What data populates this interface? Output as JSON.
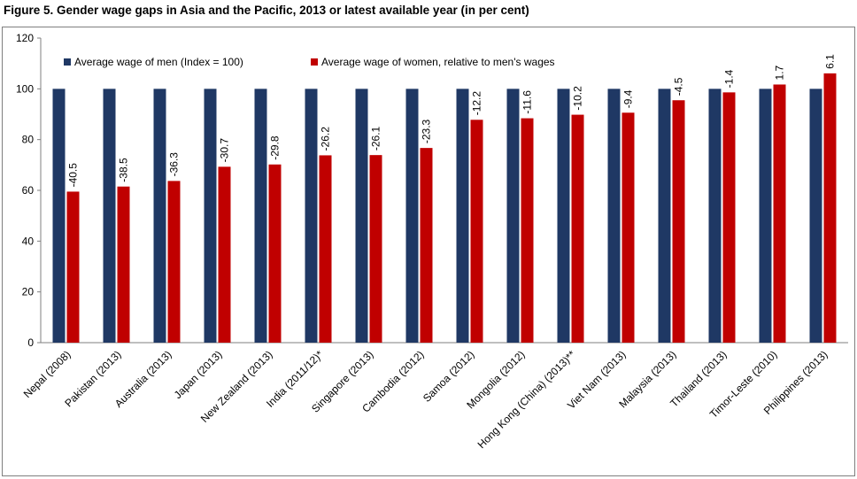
{
  "title": "Figure 5. Gender wage gaps in Asia and the Pacific, 2013 or latest available year (in per cent)",
  "chart_data": {
    "type": "bar",
    "title": "Figure 5. Gender wage gaps in Asia and the Pacific, 2013 or latest available year (in per cent)",
    "xlabel": "",
    "ylabel": "",
    "ylim": [
      0,
      120
    ],
    "yticks": [
      0,
      20,
      40,
      60,
      80,
      100,
      120
    ],
    "legend_position": "top",
    "categories": [
      "Nepal (2008)",
      "Pakistan (2013)",
      "Australia (2013)",
      "Japan (2013)",
      "New Zealand (2013)",
      "India (2011/12)*",
      "Singapore (2013)",
      "Cambodia (2012)",
      "Samoa (2012)",
      "Mongolia (2012)",
      "Hong Kong (China) (2013)**",
      "Viet Nam (2013)",
      "Malaysia (2013)",
      "Thailand (2013)",
      "Timor-Leste (2010)",
      "Philippines (2013)"
    ],
    "series": [
      {
        "name": "Average wage of men (Index = 100)",
        "color": "#1f3864",
        "values": [
          100,
          100,
          100,
          100,
          100,
          100,
          100,
          100,
          100,
          100,
          100,
          100,
          100,
          100,
          100,
          100
        ]
      },
      {
        "name": "Average wage of women, relative to men's wages",
        "color": "#c00000",
        "values": [
          59.5,
          61.5,
          63.7,
          69.3,
          70.2,
          73.8,
          73.9,
          76.7,
          87.8,
          88.4,
          89.8,
          90.6,
          95.5,
          98.6,
          101.7,
          106.1
        ],
        "labels": [
          "-40.5",
          "-38.5",
          "-36.3",
          "-30.7",
          "-29.8",
          "-26.2",
          "-26.1",
          "-23.3",
          "-12.2",
          "-11.6",
          "-10.2",
          "-9.4",
          "-4.5",
          "-1.4",
          "1.7",
          "6.1"
        ]
      }
    ]
  }
}
